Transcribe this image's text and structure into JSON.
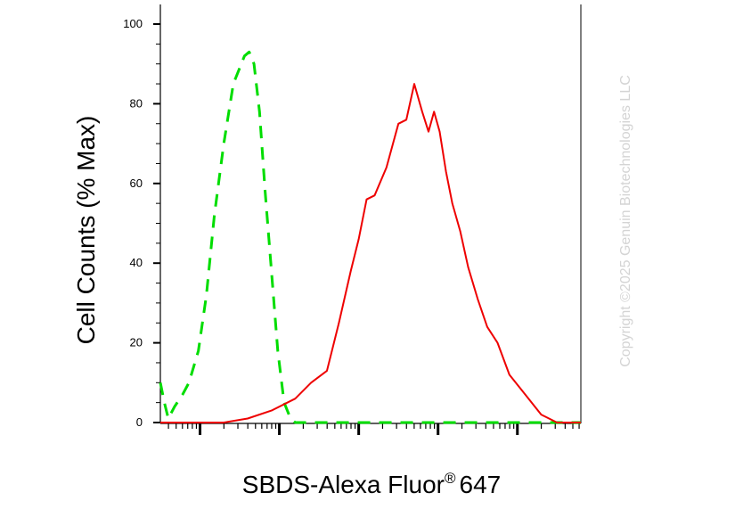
{
  "chart_data": {
    "type": "line",
    "xlabel": "SBDS-Alexa Fluor",
    "xlabel_superscript": "®",
    "xlabel_suffix": "647",
    "ylabel": "Cell Counts (% Max)",
    "ylim": [
      0,
      100
    ],
    "y_ticks": [
      0,
      20,
      40,
      60,
      80,
      100
    ],
    "y_tick_labels": [
      "0",
      "20",
      "40",
      "60",
      "80",
      "100"
    ],
    "x_scale": "log",
    "xlim_decades": [
      -0.5,
      4.8
    ],
    "legend": "none",
    "grid": false,
    "series": [
      {
        "color": "#00dd00",
        "style": "dashed",
        "x": [
          -0.5,
          -0.45,
          -0.4,
          -0.32,
          -0.22,
          -0.14,
          -0.02,
          0.08,
          0.18,
          0.3,
          0.42,
          0.5,
          0.56,
          0.62,
          0.68,
          0.75,
          0.82,
          0.9,
          0.98,
          1.06,
          1.14,
          1.2,
          1.3,
          1.42,
          1.55,
          1.8,
          2.5,
          3.5,
          4.8
        ],
        "values": [
          10,
          5,
          1,
          4,
          7,
          10,
          18,
          32,
          52,
          70,
          85,
          89,
          92,
          93,
          90,
          78,
          58,
          38,
          18,
          5,
          1,
          0,
          0,
          0,
          0,
          0,
          0,
          0,
          0
        ]
      },
      {
        "color": "#ee0000",
        "style": "solid",
        "x": [
          -0.5,
          -0.1,
          0.3,
          0.6,
          0.9,
          1.2,
          1.4,
          1.6,
          1.75,
          1.9,
          2.0,
          2.1,
          2.2,
          2.35,
          2.5,
          2.6,
          2.7,
          2.8,
          2.88,
          2.95,
          3.02,
          3.1,
          3.18,
          3.28,
          3.38,
          3.5,
          3.62,
          3.75,
          3.9,
          4.1,
          4.3,
          4.5,
          4.8
        ],
        "values": [
          0,
          0,
          0,
          1,
          3,
          6,
          10,
          13,
          25,
          38,
          46,
          56,
          57,
          64,
          75,
          76,
          85,
          78,
          73,
          78,
          73,
          63,
          55,
          48,
          39,
          31,
          24,
          20,
          12,
          7,
          2,
          0,
          0
        ]
      }
    ]
  },
  "watermark": "Copyright ©2025 Genuin Biotechnologies LLC"
}
